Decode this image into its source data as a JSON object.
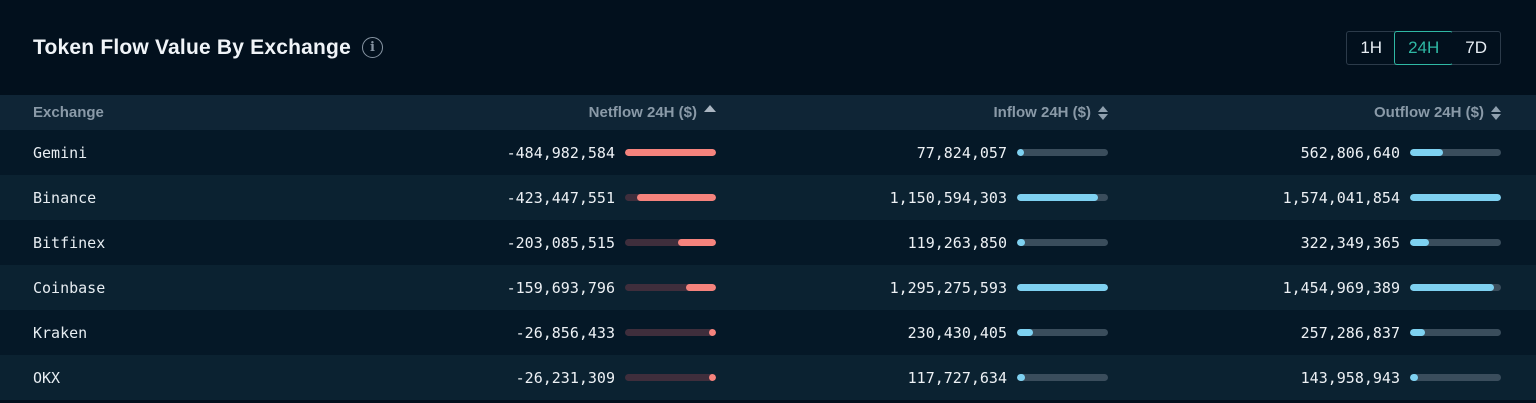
{
  "header": {
    "title": "Token Flow Value By Exchange",
    "time_ranges": [
      {
        "label": "1H",
        "selected": false
      },
      {
        "label": "24H",
        "selected": true
      },
      {
        "label": "7D",
        "selected": false
      }
    ]
  },
  "colors": {
    "accent_teal": "#2fb8a4",
    "netflow_bar_fill": "#f5837d",
    "netflow_bar_track": "#3f2e3c",
    "inflow_outflow_bar_fill": "#7ed1f1",
    "inflow_outflow_bar_track": "#3a4d5c",
    "header_row_bg": "#0f2536",
    "row_dark_bg": "#051827",
    "row_light_bg": "#0b2231"
  },
  "table": {
    "columns": [
      {
        "label": "Exchange",
        "sort": "none"
      },
      {
        "label": "Netflow 24H ($)",
        "sort": "asc"
      },
      {
        "label": "Inflow 24H ($)",
        "sort": "both"
      },
      {
        "label": "Outflow 24H ($)",
        "sort": "both"
      }
    ],
    "bar_max": {
      "netflow": 484982584,
      "inflow": 1295275593,
      "outflow": 1574041854
    },
    "rows": [
      {
        "exchange": "Gemini",
        "netflow": -484982584,
        "netflow_display": "-484,982,584",
        "inflow": 77824057,
        "inflow_display": "77,824,057",
        "outflow": 562806640,
        "outflow_display": "562,806,640"
      },
      {
        "exchange": "Binance",
        "netflow": -423447551,
        "netflow_display": "-423,447,551",
        "inflow": 1150594303,
        "inflow_display": "1,150,594,303",
        "outflow": 1574041854,
        "outflow_display": "1,574,041,854"
      },
      {
        "exchange": "Bitfinex",
        "netflow": -203085515,
        "netflow_display": "-203,085,515",
        "inflow": 119263850,
        "inflow_display": "119,263,850",
        "outflow": 322349365,
        "outflow_display": "322,349,365"
      },
      {
        "exchange": "Coinbase",
        "netflow": -159693796,
        "netflow_display": "-159,693,796",
        "inflow": 1295275593,
        "inflow_display": "1,295,275,593",
        "outflow": 1454969389,
        "outflow_display": "1,454,969,389"
      },
      {
        "exchange": "Kraken",
        "netflow": -26856433,
        "netflow_display": "-26,856,433",
        "inflow": 230430405,
        "inflow_display": "230,430,405",
        "outflow": 257286837,
        "outflow_display": "257,286,837"
      },
      {
        "exchange": "OKX",
        "netflow": -26231309,
        "netflow_display": "-26,231,309",
        "inflow": 117727634,
        "inflow_display": "117,727,634",
        "outflow": 143958943,
        "outflow_display": "143,958,943"
      }
    ]
  }
}
